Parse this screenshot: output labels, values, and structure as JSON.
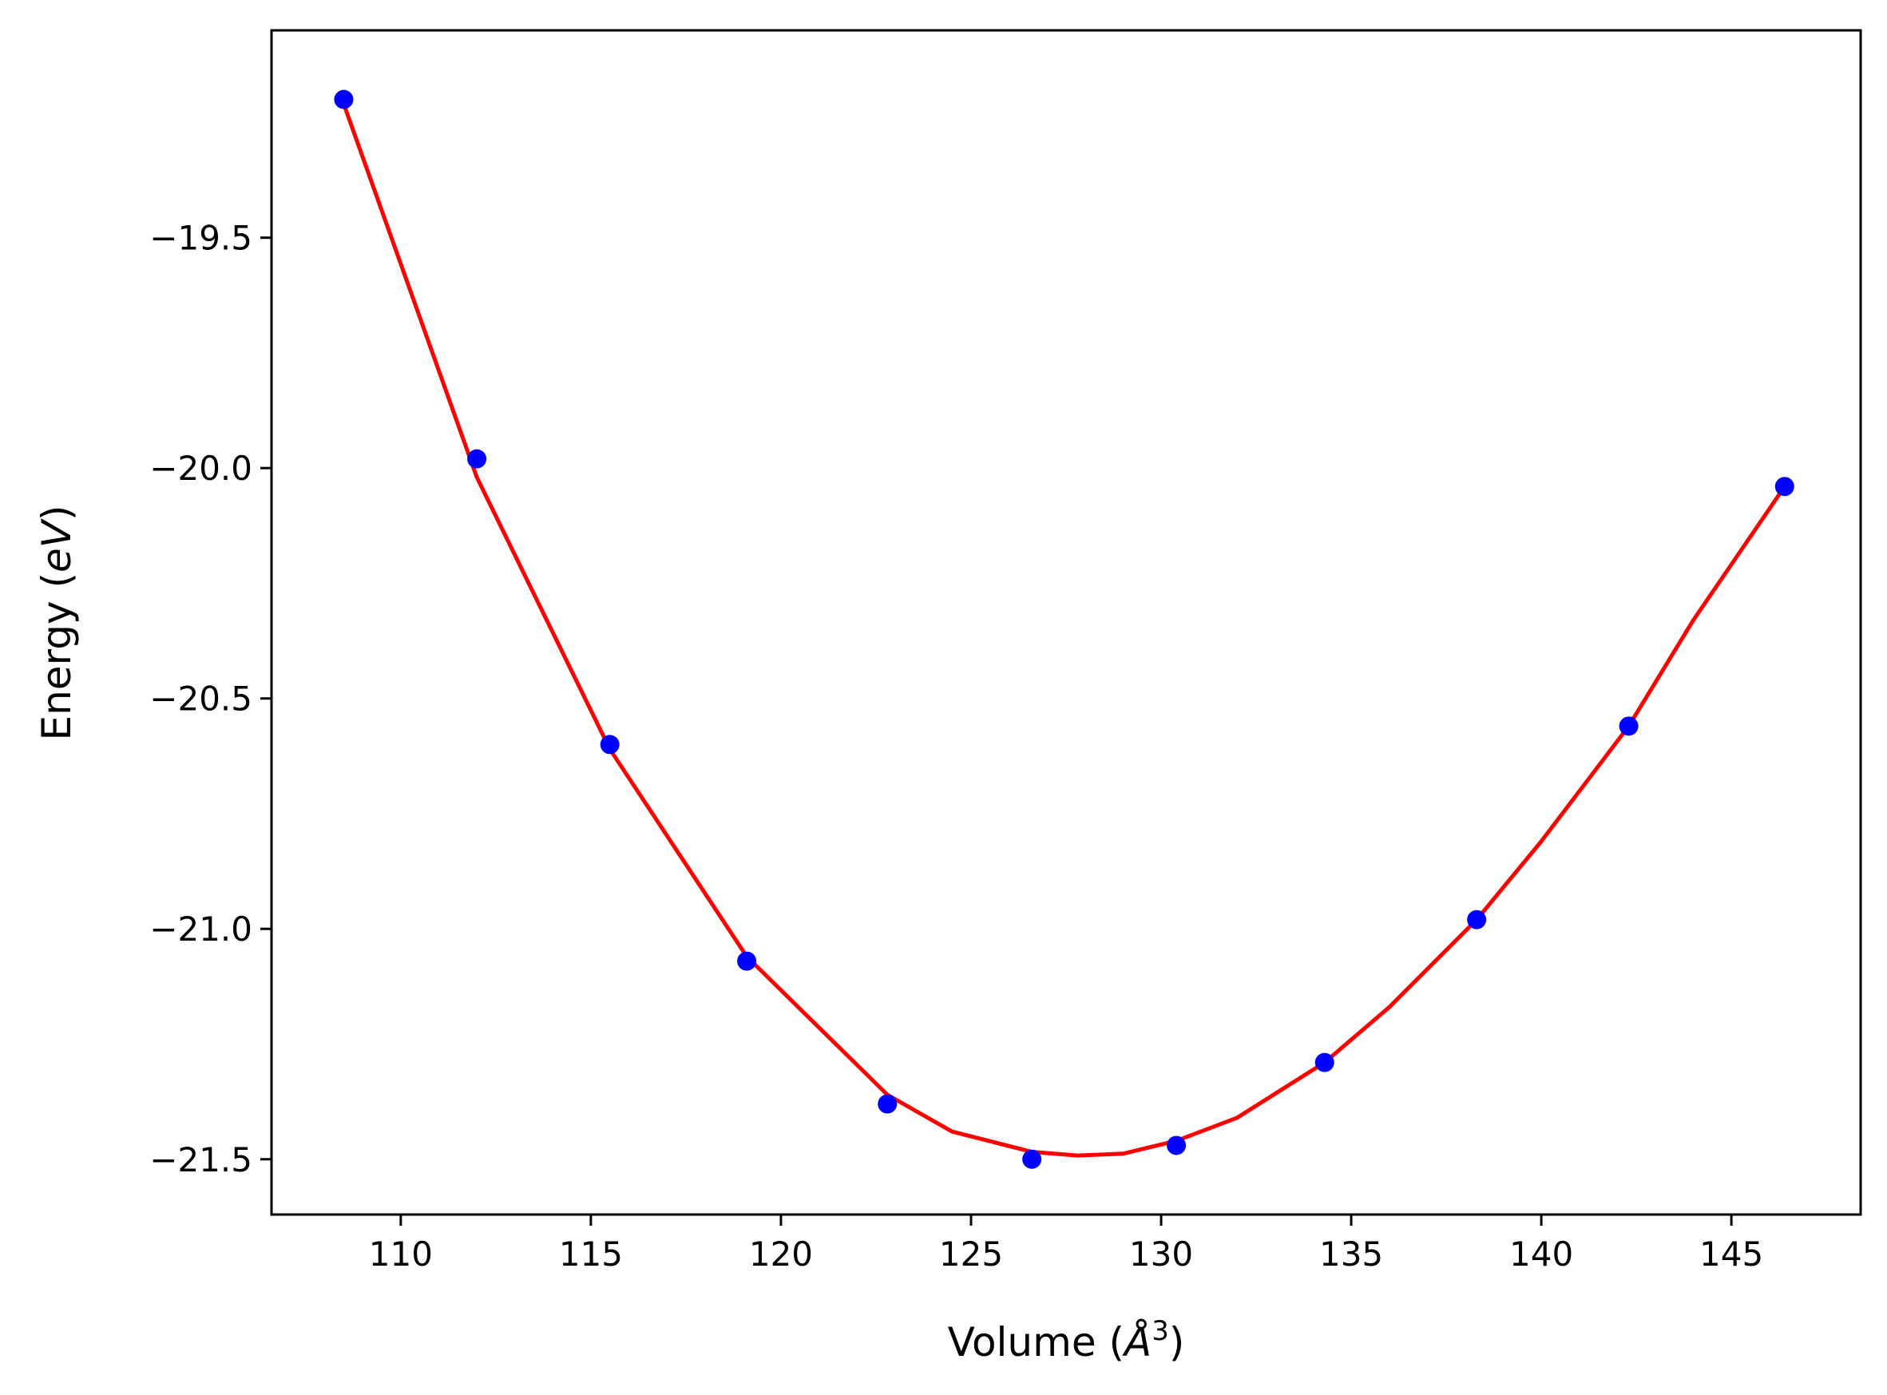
{
  "chart_data": {
    "type": "scatter",
    "title": "",
    "xlabel": "Volume (Å³)",
    "ylabel": "Energy (eV)",
    "xlabel_parts": {
      "prefix": "Volume (",
      "symbol": "Å",
      "power": "3",
      "suffix": ")"
    },
    "ylabel_parts": {
      "prefix": "Energy (",
      "unit": "eV",
      "suffix": ")"
    },
    "xlim": [
      106.6,
      148.4
    ],
    "ylim": [
      -21.62,
      -19.05
    ],
    "xticks": [
      110,
      115,
      120,
      125,
      130,
      135,
      140,
      145
    ],
    "yticks": [
      -19.5,
      -20.0,
      -20.5,
      -21.0,
      -21.5
    ],
    "ytick_labels": [
      "−19.5",
      "−20.0",
      "−20.5",
      "−21.0",
      "−21.5"
    ],
    "grid": false,
    "series": [
      {
        "kind": "points",
        "color": "#0000ff",
        "x": [
          108.5,
          112.0,
          115.5,
          119.1,
          122.8,
          126.6,
          130.4,
          134.3,
          138.3,
          142.3,
          146.4
        ],
        "y": [
          -19.2,
          -19.98,
          -20.6,
          -21.07,
          -21.38,
          -21.5,
          -21.47,
          -21.29,
          -20.98,
          -20.56,
          -20.04
        ]
      },
      {
        "kind": "fit",
        "color": "#ff0000",
        "x": [
          108.5,
          112.0,
          115.5,
          119.1,
          122.8,
          124.5,
          126.6,
          127.8,
          129.0,
          130.4,
          132.0,
          134.3,
          136.0,
          138.3,
          140.0,
          142.3,
          144.0,
          146.4
        ],
        "y": [
          -19.21,
          -20.02,
          -20.61,
          -21.06,
          -21.36,
          -21.44,
          -21.484,
          -21.492,
          -21.488,
          -21.46,
          -21.41,
          -21.29,
          -21.17,
          -20.98,
          -20.81,
          -20.56,
          -20.33,
          -20.04
        ]
      }
    ]
  }
}
